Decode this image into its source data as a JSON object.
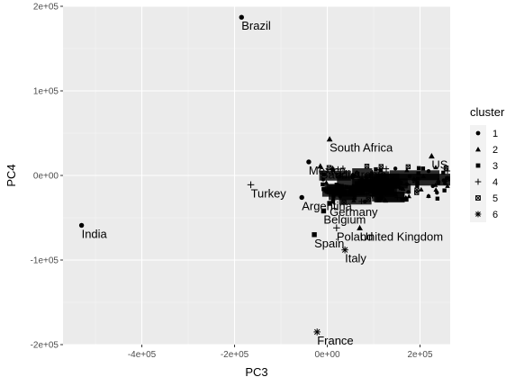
{
  "chart_data": {
    "type": "scatter",
    "xlabel": "PC3",
    "ylabel": "PC4",
    "xlim": [
      -570000,
      265000
    ],
    "ylim": [
      -200000,
      200000
    ],
    "x_ticks": [
      -400000,
      -200000,
      0,
      200000
    ],
    "x_tick_labels": [
      "-4e+05",
      "-2e+05",
      "0e+00",
      "2e+05"
    ],
    "y_ticks": [
      -200000,
      -100000,
      0,
      100000,
      200000
    ],
    "y_tick_labels": [
      "-2e+05",
      "-1e+05",
      "0e+00",
      "1e+05",
      "2e+05"
    ],
    "grid": true,
    "legend": {
      "title": "cluster",
      "position": "right",
      "entries": [
        {
          "label": "1",
          "shape": "circle"
        },
        {
          "label": "2",
          "shape": "triangle"
        },
        {
          "label": "3",
          "shape": "square"
        },
        {
          "label": "4",
          "shape": "plus"
        },
        {
          "label": "5",
          "shape": "square-x"
        },
        {
          "label": "6",
          "shape": "asterisk"
        }
      ]
    },
    "points": [
      {
        "label": "Brazil",
        "x": -185000,
        "y": 187000,
        "cluster": "1"
      },
      {
        "label": "India",
        "x": -530000,
        "y": -59000,
        "cluster": "1"
      },
      {
        "label": "Turkey",
        "x": -165000,
        "y": -11000,
        "cluster": "4"
      },
      {
        "label": "South Africa",
        "x": 5000,
        "y": 43000,
        "cluster": "2"
      },
      {
        "label": "US",
        "x": 225000,
        "y": 23000,
        "cluster": "2"
      },
      {
        "label": "Mexico",
        "x": -40000,
        "y": 16000,
        "cluster": "1"
      },
      {
        "label": "Saudi Arabia",
        "x": -15000,
        "y": 11000,
        "cluster": "2"
      },
      {
        "label": "Argentina",
        "x": -55000,
        "y": -26000,
        "cluster": "1"
      },
      {
        "label": "Germany",
        "x": 5000,
        "y": -33000,
        "cluster": "3"
      },
      {
        "label": "Belgium",
        "x": -8000,
        "y": -42000,
        "cluster": "3"
      },
      {
        "label": "Poland",
        "x": 20000,
        "y": -62000,
        "cluster": "4"
      },
      {
        "label": "United Kingdom",
        "x": 70000,
        "y": -62000,
        "cluster": "2"
      },
      {
        "label": "Spain",
        "x": -28000,
        "y": -70000,
        "cluster": "3"
      },
      {
        "label": "Italy",
        "x": 38000,
        "y": -88000,
        "cluster": "6"
      },
      {
        "label": "France",
        "x": -22000,
        "y": -185000,
        "cluster": "6"
      }
    ]
  }
}
